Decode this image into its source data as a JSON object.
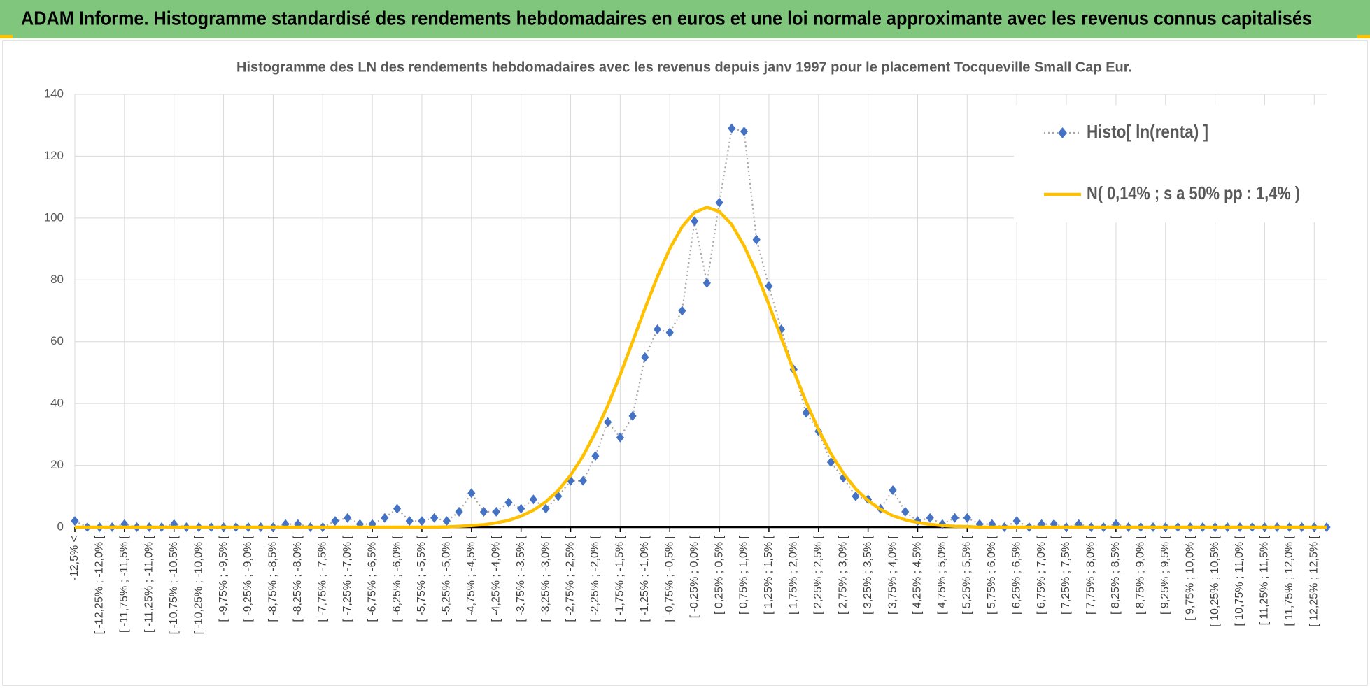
{
  "header": {
    "title": "ADAM Informe. Histogramme standardisé des rendements hebdomadaires en euros et une loi normale approximante avec les revenus connus capitalisés"
  },
  "chart_data": {
    "type": "line",
    "title": "Histogramme  des LN des rendements  hebdomadaires avec les revenus depuis janv 1997 pour le placement Tocqueville Small Cap Eur.",
    "categories": [
      "-12,5% <",
      null,
      "[ -12,25% ; -12,0% [",
      null,
      "[ -11,75% ; -11,5% [",
      null,
      "[ -11,25% ; -11,0% [",
      null,
      "[ -10,75% ; -10,5% [",
      null,
      "[ -10,25% ; -10,0% [",
      null,
      "[ -9,75% ; -9,5% [",
      null,
      "[ -9,25% ; -9,0% [",
      null,
      "[ -8,75% ; -8,5% [",
      null,
      "[ -8,25% ; -8,0% [",
      null,
      "[ -7,75% ; -7,5% [",
      null,
      "[ -7,25% ; -7,0% [",
      null,
      "[ -6,75% ; -6,5% [",
      null,
      "[ -6,25% ; -6,0% [",
      null,
      "[ -5,75% ; -5,5% [",
      null,
      "[ -5,25% ; -5,0% [",
      null,
      "[ -4,75% ; -4,5% [",
      null,
      "[ -4,25% ; -4,0% [",
      null,
      "[ -3,75% ; -3,5% [",
      null,
      "[ -3,25% ; -3,0% [",
      null,
      "[ -2,75% ; -2,5% [",
      null,
      "[ -2,25% ; -2,0% [",
      null,
      "[ -1,75% ; -1,5% [",
      null,
      "[ -1,25% ; -1,0% [",
      null,
      "[ -0,75% ; -0,5% [",
      null,
      "[ -0,25% ; 0,0% [",
      null,
      "[ 0,25% ; 0,5% [",
      null,
      "[ 0,75% ; 1,0% [",
      null,
      "[ 1,25% ; 1,5% [",
      null,
      "[ 1,75% ; 2,0% [",
      null,
      "[ 2,25% ; 2,5% [",
      null,
      "[ 2,75% ; 3,0% [",
      null,
      "[ 3,25% ; 3,5% [",
      null,
      "[ 3,75% ; 4,0% [",
      null,
      "[ 4,25% ; 4,5% [",
      null,
      "[ 4,75% ; 5,0% [",
      null,
      "[ 5,25% ; 5,5% [",
      null,
      "[ 5,75% ; 6,0% [",
      null,
      "[ 6,25% ; 6,5% [",
      null,
      "[ 6,75% ; 7,0% [",
      null,
      "[ 7,25% ; 7,5% [",
      null,
      "[ 7,75% ; 8,0% [",
      null,
      "[ 8,25% ; 8,5% [",
      null,
      "[ 8,75% ; 9,0% [",
      null,
      "[ 9,25% ; 9,5% [",
      null,
      "[ 9,75% ; 10,0% [",
      null,
      "[ 10,25% ; 10,5% [",
      null,
      "[ 10,75% ; 11,0% [",
      null,
      "[ 11,25% ; 11,5% [",
      null,
      "[ 11,75% ; 12,0% [",
      null,
      "[ 12,25% ; 12,5% [",
      null
    ],
    "series": [
      {
        "name": "Histo[ ln(renta) ]",
        "color": "#4472c4",
        "line_color": "#a6a6a6",
        "line_style": "dotted",
        "marker": "diamond",
        "values": [
          2,
          0,
          0,
          0,
          1,
          0,
          0,
          0,
          1,
          0,
          0,
          0,
          0,
          0,
          0,
          0,
          0,
          1,
          1,
          0,
          0,
          2,
          3,
          1,
          1,
          3,
          6,
          2,
          2,
          3,
          2,
          5,
          11,
          5,
          5,
          8,
          6,
          9,
          6,
          10,
          15,
          15,
          23,
          34,
          29,
          36,
          55,
          64,
          63,
          70,
          99,
          79,
          105,
          129,
          128,
          93,
          78,
          64,
          51,
          37,
          31,
          21,
          16,
          10,
          9,
          6,
          12,
          5,
          2,
          3,
          1,
          3,
          3,
          1,
          1,
          0,
          2,
          0,
          1,
          1,
          0,
          1,
          0,
          0,
          1,
          0,
          0,
          0,
          0,
          0,
          0,
          0,
          0,
          0,
          0,
          0,
          0,
          0,
          0,
          0,
          0,
          0
        ]
      },
      {
        "name": "N( 0,14% ; s a 50% pp : 1,4% )",
        "color": "#ffc000",
        "line_style": "solid",
        "values": [
          0,
          0,
          0,
          0,
          0,
          0,
          0,
          0,
          0,
          0,
          0,
          0,
          0,
          0,
          0,
          0,
          0,
          0,
          0,
          0,
          0,
          0,
          0,
          0,
          0,
          0,
          0,
          0,
          0,
          0,
          0.1,
          0.3,
          0.5,
          0.8,
          1.4,
          2.2,
          3.6,
          5.5,
          8.2,
          11.9,
          16.8,
          23,
          30.6,
          39.4,
          49.3,
          60,
          70.8,
          81,
          90.1,
          97.2,
          101.8,
          103.5,
          102.1,
          97.9,
          91,
          82.2,
          72,
          61.3,
          50.6,
          40.5,
          31.6,
          23.8,
          17.5,
          12.4,
          8.6,
          5.8,
          3.7,
          2.4,
          1.5,
          0.9,
          0.5,
          0.3,
          0.2,
          0,
          0,
          0,
          0,
          0,
          0,
          0,
          0,
          0,
          0,
          0,
          0,
          0,
          0,
          0,
          0,
          0,
          0,
          0,
          0,
          0,
          0,
          0,
          0,
          0,
          0,
          0,
          0,
          0
        ]
      }
    ],
    "ylim": [
      0,
      140
    ],
    "yticks": [
      0,
      20,
      40,
      60,
      80,
      100,
      120,
      140
    ],
    "grid": true,
    "legend": "top-right"
  }
}
